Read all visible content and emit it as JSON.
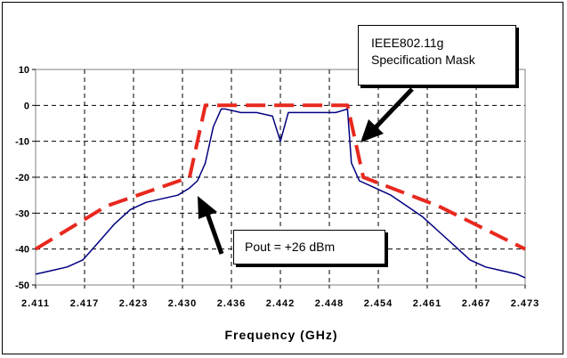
{
  "chart_data": {
    "type": "line",
    "title": "",
    "xlabel": "Frequency (GHz)",
    "ylabel": "",
    "xlim": [
      2.411,
      2.473
    ],
    "ylim": [
      -50,
      10
    ],
    "x_tick_labels": [
      "2.411",
      "2.417",
      "2.423",
      "2.430",
      "2.436",
      "2.442",
      "2.448",
      "2.454",
      "2.461",
      "2.467",
      "2.473"
    ],
    "y_tick_labels": [
      "10",
      "0",
      "-10",
      "-20",
      "-30",
      "-40",
      "-50"
    ],
    "y_ticks": [
      10,
      0,
      -10,
      -20,
      -30,
      -40,
      -50
    ],
    "grid": true,
    "series": [
      {
        "style": "measured-spectrum",
        "color": "#000080",
        "x": [
          2.411,
          2.413,
          2.415,
          2.417,
          2.419,
          2.421,
          2.423,
          2.425,
          2.427,
          2.429,
          2.4305,
          2.4315,
          2.4325,
          2.4335,
          2.4345,
          2.435,
          2.437,
          2.439,
          2.441,
          2.442,
          2.443,
          2.445,
          2.447,
          2.449,
          2.4505,
          2.451,
          2.452,
          2.454,
          2.456,
          2.458,
          2.46,
          2.462,
          2.464,
          2.466,
          2.468,
          2.47,
          2.472,
          2.473
        ],
        "y": [
          -47,
          -46,
          -45,
          -43,
          -38,
          -33,
          -29,
          -27,
          -26,
          -25,
          -23,
          -21,
          -16,
          -6,
          -1,
          -1,
          -2,
          -2,
          -3,
          -10,
          -2,
          -2,
          -2,
          -2,
          -1,
          -16,
          -21,
          -23,
          -25,
          -28,
          -31,
          -35,
          -39,
          -43,
          -45,
          -46,
          -47,
          -48
        ]
      },
      {
        "style": "specification-mask",
        "color": "#e8281e",
        "x": [
          2.411,
          2.42,
          2.4305,
          2.4325,
          2.4505,
          2.4525,
          2.462,
          2.473
        ],
        "y": [
          -40,
          -28,
          -20,
          0,
          0,
          -20,
          -28,
          -40
        ]
      }
    ],
    "annotations": [
      {
        "text": "IEEE802.11g Specification Mask",
        "lines": [
          "IEEE802.11g",
          "Specification Mask"
        ]
      },
      {
        "text": "Pout = +26 dBm"
      }
    ]
  }
}
